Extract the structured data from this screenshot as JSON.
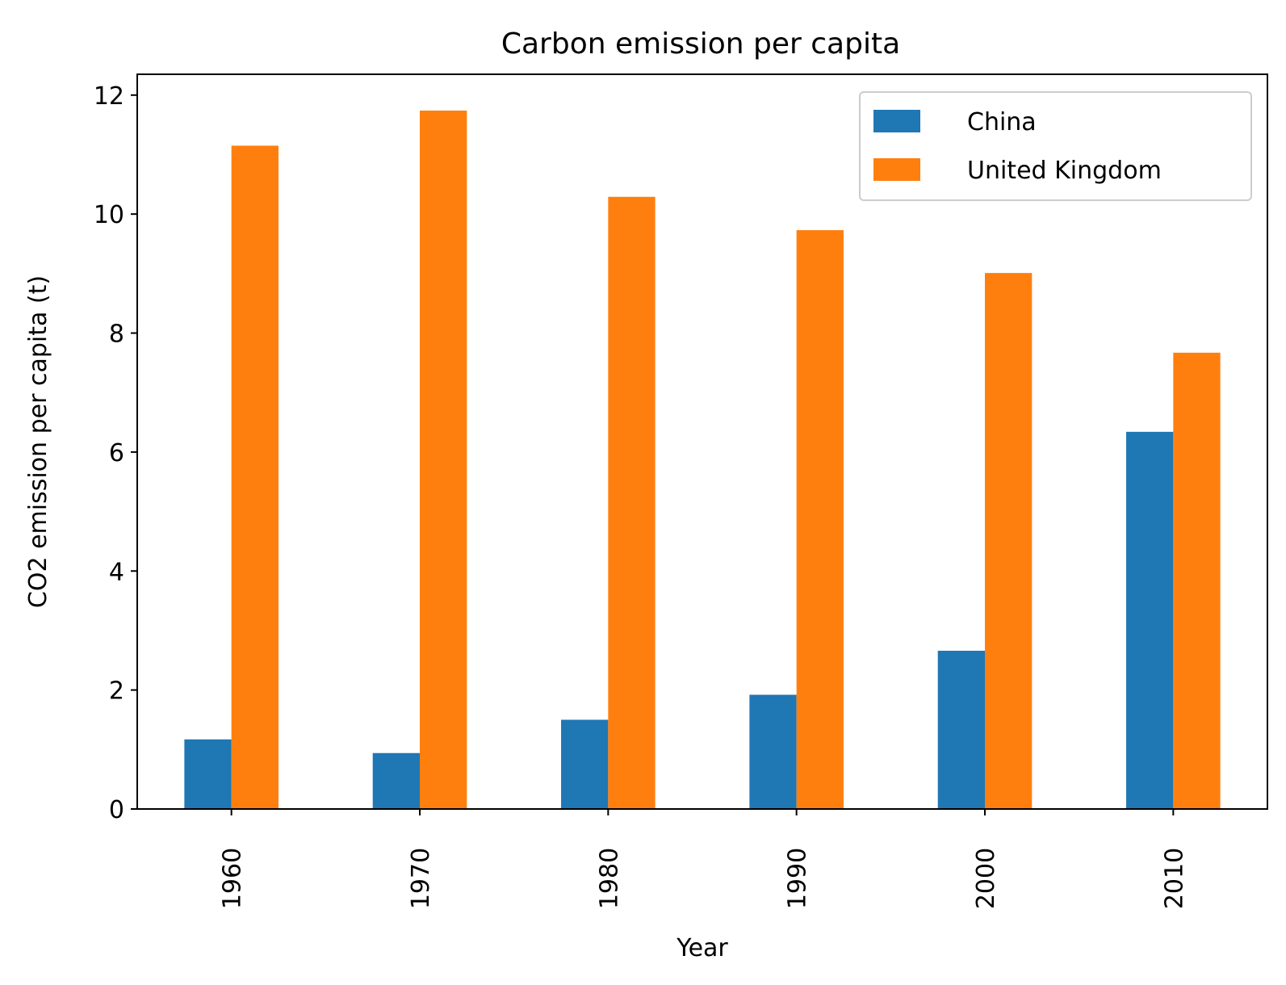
{
  "chart_data": {
    "type": "bar",
    "title": "Carbon emission per capita",
    "xlabel": "Year",
    "ylabel": "CO2 emission per capita (t)",
    "categories": [
      "1960",
      "1970",
      "1980",
      "1990",
      "2000",
      "2010"
    ],
    "series": [
      {
        "name": "China",
        "color": "#1f77b4",
        "values": [
          1.17,
          0.94,
          1.5,
          1.92,
          2.66,
          6.34
        ]
      },
      {
        "name": "United Kingdom",
        "color": "#ff7f0e",
        "values": [
          11.15,
          11.74,
          10.29,
          9.73,
          9.01,
          7.67
        ]
      }
    ],
    "ylim": [
      0,
      12.35
    ],
    "yticks": [
      "0",
      "2",
      "4",
      "6",
      "8",
      "10",
      "12"
    ],
    "grid": false,
    "legend_position": "top-right"
  }
}
